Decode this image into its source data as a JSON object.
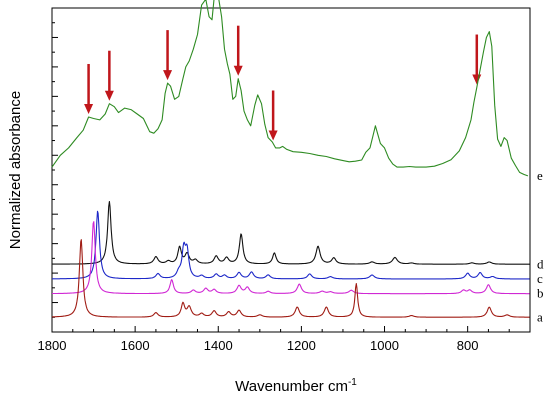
{
  "chart_data": {
    "type": "line",
    "title": "",
    "xlabel": "Wavenumber cm",
    "xlabel_superscript": "-1",
    "ylabel": "Normalized absorbance",
    "x_reversed": true,
    "xlim": [
      1800,
      650
    ],
    "x_ticks": [
      "1800",
      "1600",
      "1400",
      "1200",
      "1000",
      "800"
    ],
    "ylim": [
      0,
      11
    ],
    "y_tick_labels_shown": false,
    "grid": false,
    "legend": "none",
    "arrow_color": "#c0161b",
    "arrows_at_wavenumber": [
      1712,
      1662,
      1522,
      1352,
      1268,
      778
    ],
    "series": [
      {
        "name": "e",
        "color": "#2e8b22",
        "baseline": 5.3,
        "points": [
          [
            1800,
            0.3
          ],
          [
            1780,
            0.7
          ],
          [
            1760,
            0.95
          ],
          [
            1740,
            1.3
          ],
          [
            1725,
            1.55
          ],
          [
            1712,
            2.0
          ],
          [
            1700,
            1.95
          ],
          [
            1685,
            1.9
          ],
          [
            1672,
            2.1
          ],
          [
            1662,
            2.45
          ],
          [
            1650,
            2.35
          ],
          [
            1640,
            2.15
          ],
          [
            1625,
            2.3
          ],
          [
            1610,
            2.25
          ],
          [
            1595,
            2.1
          ],
          [
            1580,
            1.95
          ],
          [
            1565,
            1.5
          ],
          [
            1555,
            1.45
          ],
          [
            1545,
            1.6
          ],
          [
            1535,
            1.9
          ],
          [
            1528,
            2.8
          ],
          [
            1522,
            3.15
          ],
          [
            1515,
            3.05
          ],
          [
            1505,
            2.6
          ],
          [
            1495,
            2.7
          ],
          [
            1485,
            3.3
          ],
          [
            1478,
            3.7
          ],
          [
            1470,
            3.9
          ],
          [
            1460,
            4.3
          ],
          [
            1450,
            4.8
          ],
          [
            1440,
            5.8
          ],
          [
            1430,
            6.0
          ],
          [
            1422,
            5.4
          ],
          [
            1415,
            5.3
          ],
          [
            1408,
            6.3
          ],
          [
            1400,
            6.1
          ],
          [
            1392,
            5.4
          ],
          [
            1385,
            4.3
          ],
          [
            1378,
            3.8
          ],
          [
            1372,
            3.45
          ],
          [
            1365,
            2.6
          ],
          [
            1358,
            2.7
          ],
          [
            1352,
            3.3
          ],
          [
            1345,
            2.9
          ],
          [
            1338,
            2.2
          ],
          [
            1330,
            1.9
          ],
          [
            1322,
            1.7
          ],
          [
            1312,
            2.4
          ],
          [
            1305,
            2.75
          ],
          [
            1296,
            2.45
          ],
          [
            1288,
            1.75
          ],
          [
            1280,
            1.3
          ],
          [
            1270,
            1.15
          ],
          [
            1262,
            0.95
          ],
          [
            1252,
            0.95
          ],
          [
            1245,
            1.0
          ],
          [
            1235,
            0.9
          ],
          [
            1220,
            0.82
          ],
          [
            1200,
            0.8
          ],
          [
            1180,
            0.76
          ],
          [
            1160,
            0.7
          ],
          [
            1140,
            0.66
          ],
          [
            1120,
            0.58
          ],
          [
            1100,
            0.52
          ],
          [
            1085,
            0.48
          ],
          [
            1070,
            0.5
          ],
          [
            1055,
            0.54
          ],
          [
            1045,
            0.8
          ],
          [
            1035,
            0.95
          ],
          [
            1028,
            1.35
          ],
          [
            1022,
            1.7
          ],
          [
            1016,
            1.4
          ],
          [
            1010,
            1.1
          ],
          [
            1000,
            0.95
          ],
          [
            990,
            0.6
          ],
          [
            980,
            0.4
          ],
          [
            970,
            0.3
          ],
          [
            955,
            0.3
          ],
          [
            940,
            0.32
          ],
          [
            925,
            0.3
          ],
          [
            900,
            0.3
          ],
          [
            880,
            0.33
          ],
          [
            860,
            0.42
          ],
          [
            840,
            0.55
          ],
          [
            820,
            0.85
          ],
          [
            805,
            1.3
          ],
          [
            792,
            1.9
          ],
          [
            785,
            2.5
          ],
          [
            778,
            3.0
          ],
          [
            770,
            3.6
          ],
          [
            762,
            4.2
          ],
          [
            755,
            4.7
          ],
          [
            748,
            4.9
          ],
          [
            742,
            4.4
          ],
          [
            735,
            2.4
          ],
          [
            728,
            1.25
          ],
          [
            720,
            1.0
          ],
          [
            712,
            1.3
          ],
          [
            705,
            1.2
          ],
          [
            695,
            0.6
          ],
          [
            685,
            0.35
          ],
          [
            675,
            0.12
          ],
          [
            665,
            0.05
          ],
          [
            655,
            0.0
          ]
        ]
      },
      {
        "name": "d",
        "color": "#111111",
        "baseline": 2.3,
        "peaks": [
          [
            1662,
            5.6,
            5
          ],
          [
            1550,
            0.65,
            6
          ],
          [
            1520,
            0.25,
            6
          ],
          [
            1493,
            1.5,
            5
          ],
          [
            1475,
            0.9,
            6
          ],
          [
            1455,
            0.35,
            6
          ],
          [
            1405,
            0.7,
            6
          ],
          [
            1380,
            0.55,
            6
          ],
          [
            1345,
            2.7,
            5
          ],
          [
            1265,
            1.0,
            5
          ],
          [
            1160,
            1.6,
            6
          ],
          [
            1122,
            0.55,
            6
          ],
          [
            1030,
            0.2,
            7
          ],
          [
            975,
            0.6,
            7
          ],
          [
            935,
            0.1,
            7
          ],
          [
            790,
            0.12,
            7
          ],
          [
            748,
            0.2,
            7
          ]
        ]
      },
      {
        "name": "c",
        "color": "#1d28c8",
        "baseline": 1.8,
        "peaks": [
          [
            1690,
            6.1,
            5
          ],
          [
            1545,
            0.45,
            6
          ],
          [
            1495,
            0.5,
            6
          ],
          [
            1483,
            2.5,
            5
          ],
          [
            1475,
            2.3,
            5
          ],
          [
            1440,
            0.25,
            6
          ],
          [
            1405,
            0.4,
            6
          ],
          [
            1385,
            0.3,
            6
          ],
          [
            1350,
            0.55,
            6
          ],
          [
            1320,
            0.6,
            6
          ],
          [
            1280,
            0.35,
            6
          ],
          [
            1180,
            0.45,
            6
          ],
          [
            1130,
            0.2,
            7
          ],
          [
            1030,
            0.35,
            7
          ],
          [
            800,
            0.5,
            6
          ],
          [
            770,
            0.55,
            6
          ],
          [
            740,
            0.2,
            7
          ]
        ]
      },
      {
        "name": "b",
        "color": "#d028d4",
        "baseline": 1.3,
        "peaks": [
          [
            1700,
            6.5,
            5
          ],
          [
            1512,
            1.25,
            5
          ],
          [
            1460,
            0.3,
            6
          ],
          [
            1430,
            0.45,
            6
          ],
          [
            1410,
            0.35,
            6
          ],
          [
            1350,
            0.7,
            6
          ],
          [
            1330,
            0.55,
            6
          ],
          [
            1280,
            0.2,
            6
          ],
          [
            1205,
            0.85,
            6
          ],
          [
            1150,
            0.2,
            7
          ],
          [
            1130,
            0.15,
            7
          ],
          [
            1080,
            0.3,
            7
          ],
          [
            810,
            0.3,
            6
          ],
          [
            795,
            0.3,
            6
          ],
          [
            750,
            0.8,
            6
          ]
        ]
      },
      {
        "name": "a",
        "color": "#a01c14",
        "baseline": 0.5,
        "peaks": [
          [
            1730,
            7.0,
            5
          ],
          [
            1550,
            0.4,
            6
          ],
          [
            1485,
            1.2,
            5
          ],
          [
            1470,
            0.9,
            6
          ],
          [
            1440,
            0.3,
            6
          ],
          [
            1410,
            0.55,
            6
          ],
          [
            1375,
            0.45,
            6
          ],
          [
            1350,
            0.6,
            6
          ],
          [
            1300,
            0.2,
            7
          ],
          [
            1210,
            0.9,
            6
          ],
          [
            1140,
            0.9,
            6
          ],
          [
            1068,
            3.0,
            4
          ],
          [
            935,
            0.15,
            7
          ],
          [
            748,
            0.9,
            6
          ],
          [
            705,
            0.2,
            7
          ]
        ]
      }
    ]
  }
}
